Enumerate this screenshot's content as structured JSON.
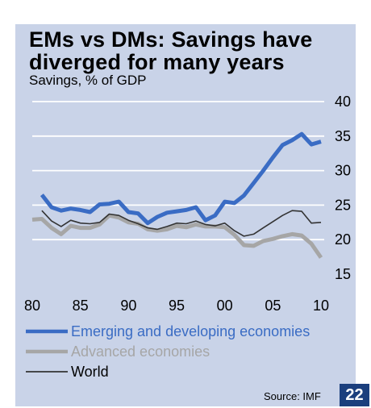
{
  "page": {
    "title": "EMs vs DMs: Savings have diverged for many years",
    "subtitle": "Savings, % of GDP",
    "source": "Source: IMF",
    "page_number": "22"
  },
  "colors": {
    "panel_bg": "#c9d3e8",
    "emerging": "#3a6cc4",
    "advanced": "#a6a6a6",
    "world": "#333333",
    "badge_bg": "#1b3f7d"
  },
  "chart_data": {
    "type": "line",
    "title": "EMs vs DMs: Savings have diverged for many years",
    "ylabel": "Savings, % of GDP",
    "xlabel": "",
    "xlim": [
      1980,
      2010
    ],
    "ylim": [
      15,
      40
    ],
    "yticks": [
      15,
      20,
      25,
      30,
      35,
      40
    ],
    "xtick_values": [
      1980,
      1985,
      1990,
      1995,
      2000,
      2005,
      2010
    ],
    "xtick_labels": [
      "80",
      "85",
      "90",
      "95",
      "00",
      "05",
      "10"
    ],
    "grid": "horizontal",
    "legend_position": "bottom-left",
    "x": [
      1980,
      1981,
      1982,
      1983,
      1984,
      1985,
      1986,
      1987,
      1988,
      1989,
      1990,
      1991,
      1992,
      1993,
      1994,
      1995,
      1996,
      1997,
      1998,
      1999,
      2000,
      2001,
      2002,
      2003,
      2004,
      2005,
      2006,
      2007,
      2008,
      2009,
      2010
    ],
    "series": [
      {
        "name": "Emerging and developing economies",
        "color": "#3a6cc4",
        "width": 5,
        "values": [
          null,
          26.5,
          24.7,
          24.2,
          24.5,
          24.3,
          24.0,
          25.1,
          25.2,
          25.5,
          24.0,
          23.8,
          22.4,
          23.3,
          23.9,
          24.1,
          24.3,
          24.7,
          22.8,
          23.5,
          25.5,
          25.3,
          26.4,
          28.2,
          30.0,
          31.9,
          33.7,
          34.4,
          35.3,
          33.8,
          34.2
        ]
      },
      {
        "name": "Advanced economies",
        "color": "#a6a6a6",
        "width": 5,
        "values": [
          22.9,
          23.0,
          21.7,
          20.8,
          22.0,
          21.7,
          21.7,
          22.2,
          23.5,
          23.2,
          22.5,
          22.3,
          21.5,
          21.3,
          21.5,
          22.0,
          21.8,
          22.2,
          21.9,
          21.9,
          21.8,
          20.7,
          19.2,
          19.1,
          19.8,
          20.1,
          20.5,
          20.8,
          20.6,
          19.4,
          17.4
        ]
      },
      {
        "name": "World",
        "color": "#333333",
        "width": 1.6,
        "values": [
          null,
          24.2,
          22.7,
          21.9,
          22.8,
          22.4,
          22.3,
          22.5,
          23.7,
          23.5,
          22.8,
          22.3,
          21.7,
          21.5,
          21.9,
          22.4,
          22.3,
          22.7,
          22.2,
          22.0,
          22.4,
          21.3,
          20.5,
          20.8,
          21.7,
          22.6,
          23.5,
          24.2,
          24.1,
          22.4,
          22.5
        ]
      }
    ]
  }
}
